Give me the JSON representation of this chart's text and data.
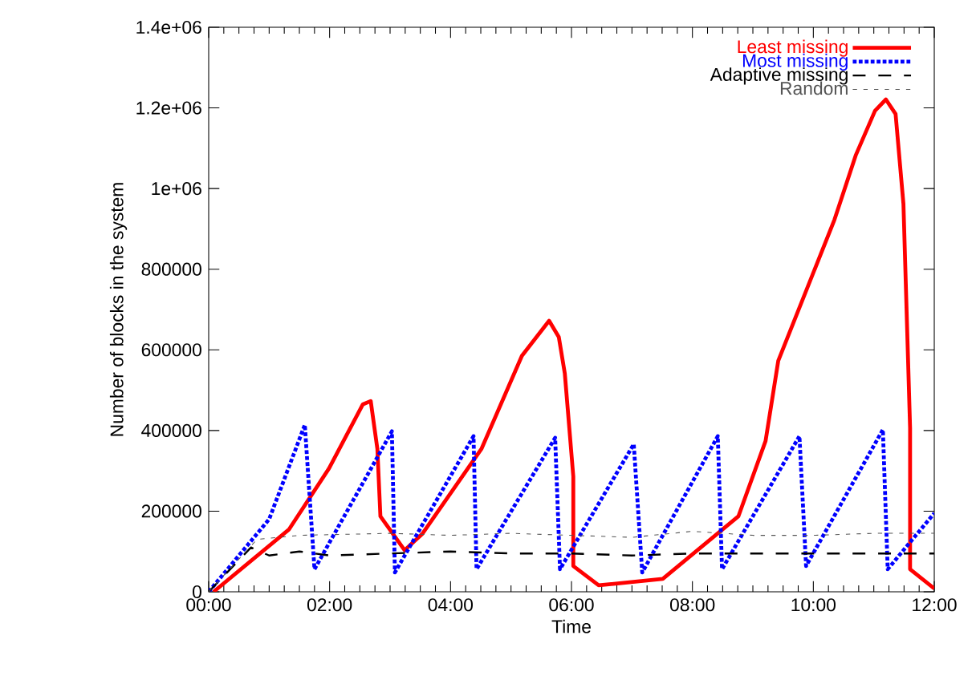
{
  "chart_data": {
    "type": "line",
    "xlabel": "Time",
    "ylabel": "Number of blocks in the system",
    "xlim": [
      0,
      12
    ],
    "ylim": [
      0,
      1400000
    ],
    "xticks": [
      {
        "value": 0,
        "label": "00:00"
      },
      {
        "value": 2,
        "label": "02:00"
      },
      {
        "value": 4,
        "label": "04:00"
      },
      {
        "value": 6,
        "label": "06:00"
      },
      {
        "value": 8,
        "label": "08:00"
      },
      {
        "value": 10,
        "label": "10:00"
      },
      {
        "value": 12,
        "label": "12:00"
      }
    ],
    "yticks": [
      0,
      200000,
      400000,
      600000,
      800000,
      {
        "value": 1000000,
        "label": "1e+06"
      },
      {
        "value": 1200000,
        "label": "1.2e+06"
      },
      {
        "value": 1400000,
        "label": "1.4e+06"
      }
    ],
    "legend": "top right",
    "grid": false,
    "marker": "none",
    "series": [
      {
        "name": "Least missing",
        "color": "#ff0000",
        "line_style": "solid",
        "x": [
          0.08,
          1.33,
          1.99,
          2.55,
          2.68,
          2.79,
          2.84,
          3.24,
          3.53,
          4.51,
          5.18,
          5.63,
          5.79,
          5.89,
          6.03,
          6.03,
          6.45,
          7.51,
          8.76,
          9.21,
          9.42,
          10.35,
          10.7,
          11.02,
          11.2,
          11.36,
          11.49,
          11.6,
          11.6,
          12.0
        ],
        "values": [
          0,
          155000,
          306000,
          465000,
          473000,
          354000,
          187000,
          103000,
          143000,
          354000,
          585000,
          672000,
          632000,
          541000,
          286000,
          64000,
          16000,
          32000,
          187000,
          374000,
          573000,
          923000,
          1082000,
          1193000,
          1221000,
          1185000,
          962000,
          406000,
          56000,
          8000
        ]
      },
      {
        "name": "Most missing",
        "color": "#0000ff",
        "line_style": "dotted",
        "x": [
          0,
          1.0,
          1.59,
          1.75,
          3.03,
          3.08,
          4.38,
          4.43,
          5.73,
          5.81,
          7.03,
          7.17,
          8.42,
          8.49,
          9.77,
          9.88,
          11.15,
          11.23,
          12.0
        ],
        "values": [
          0,
          180000,
          414000,
          56000,
          398000,
          48000,
          386000,
          56000,
          382000,
          56000,
          366000,
          48000,
          386000,
          56000,
          386000,
          64000,
          402000,
          56000,
          195000
        ]
      },
      {
        "name": "Adaptive missing",
        "color": "#000000",
        "line_style": "dashed",
        "x": [
          0,
          0.7,
          1.0,
          1.5,
          2.0,
          3.0,
          4.0,
          5.0,
          6.0,
          7.0,
          8.0,
          9.0,
          10.0,
          11.0,
          12.0
        ],
        "values": [
          0,
          110000,
          90000,
          100000,
          90000,
          95000,
          100000,
          95000,
          95000,
          90000,
          95000,
          95000,
          95000,
          95000,
          95000
        ]
      },
      {
        "name": "Random",
        "color": "#555555",
        "line_style": "densely dashed",
        "x": [
          0,
          0.8,
          1.5,
          3.0,
          4.0,
          5.0,
          6.0,
          7.0,
          8.0,
          9.0,
          10.0,
          11.0,
          12.0
        ],
        "values": [
          0,
          130000,
          140000,
          145000,
          140000,
          145000,
          140000,
          135000,
          150000,
          140000,
          140000,
          145000,
          145000
        ]
      }
    ]
  }
}
